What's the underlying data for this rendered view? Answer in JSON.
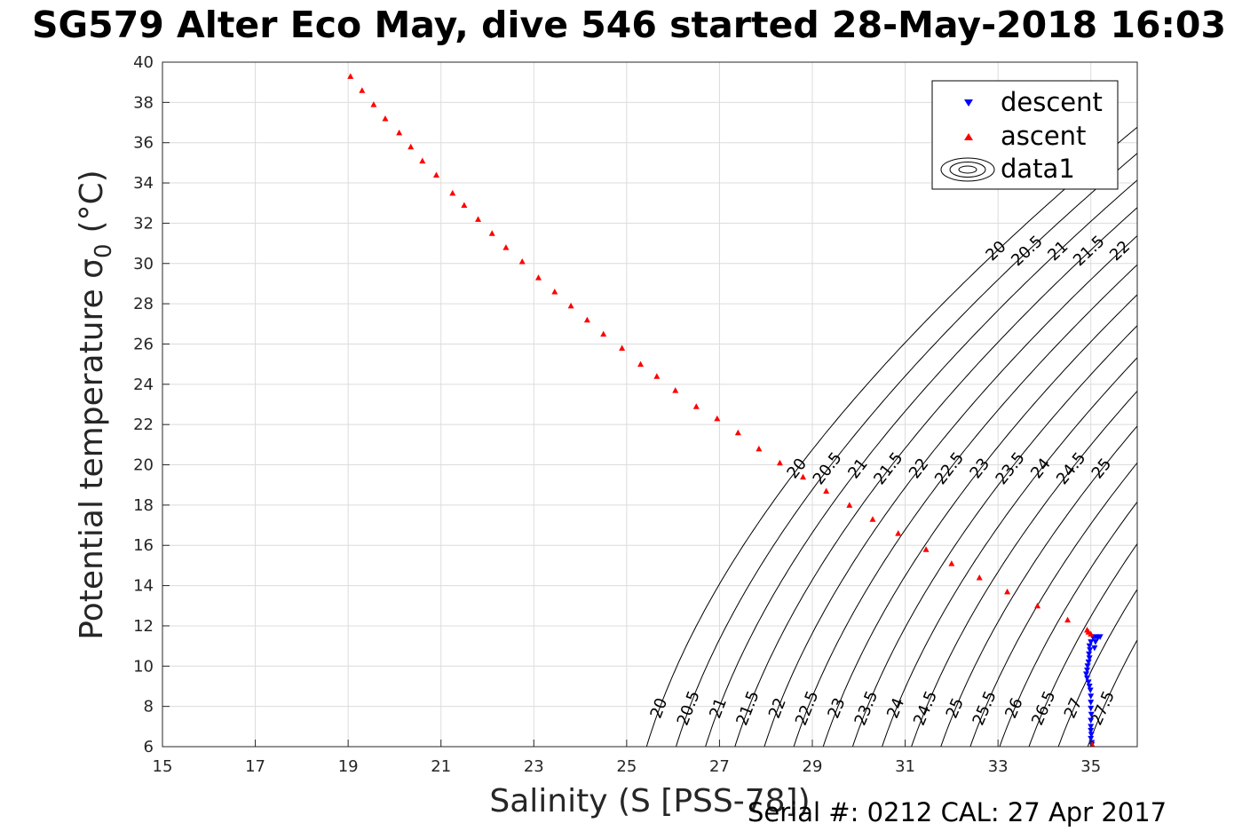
{
  "title": "SG579 Alter Eco May, dive 546 started 28-May-2018 16:03",
  "footer": "Serial #: 0212  CAL: 27 Apr 2017",
  "chart_data": {
    "type": "scatter",
    "xlabel": "Salinity (S [PSS-78])",
    "ylabel": "Potential temperature σ",
    "ylabel_subscript": "0",
    "ylabel_unit": "(°C)",
    "xlim": [
      15,
      36
    ],
    "ylim": [
      6,
      40
    ],
    "xticks": [
      15,
      17,
      19,
      21,
      23,
      25,
      27,
      29,
      31,
      33,
      35
    ],
    "yticks": [
      6,
      8,
      10,
      12,
      14,
      16,
      18,
      20,
      22,
      24,
      26,
      28,
      30,
      32,
      34,
      36,
      38,
      40
    ],
    "grid": true,
    "legend_position": "top-right",
    "legend": [
      "descent",
      "ascent",
      "data1"
    ],
    "series": [
      {
        "name": "descent",
        "marker": "triangle-down",
        "color": "#0000ff",
        "points": [
          [
            35.05,
            11.4
          ],
          [
            35.0,
            11.2
          ],
          [
            34.97,
            11.0
          ],
          [
            34.98,
            10.8
          ],
          [
            34.96,
            10.6
          ],
          [
            34.97,
            10.4
          ],
          [
            34.95,
            10.2
          ],
          [
            34.93,
            10.0
          ],
          [
            34.92,
            9.8
          ],
          [
            34.9,
            9.6
          ],
          [
            34.92,
            9.4
          ],
          [
            34.95,
            9.2
          ],
          [
            34.97,
            9.0
          ],
          [
            34.99,
            8.8
          ],
          [
            35.0,
            8.5
          ],
          [
            35.0,
            8.2
          ],
          [
            35.0,
            7.9
          ],
          [
            35.01,
            7.6
          ],
          [
            35.0,
            7.3
          ],
          [
            35.0,
            7.0
          ],
          [
            35.0,
            6.8
          ],
          [
            35.01,
            6.6
          ],
          [
            35.0,
            6.4
          ],
          [
            35.02,
            6.2
          ],
          [
            35.02,
            6.1
          ],
          [
            35.1,
            11.45
          ],
          [
            35.15,
            11.4
          ],
          [
            35.2,
            11.45
          ],
          [
            35.1,
            11.2
          ],
          [
            35.08,
            10.9
          ]
        ]
      },
      {
        "name": "ascent",
        "marker": "triangle-up",
        "color": "#ff0000",
        "points": [
          [
            19.05,
            39.3
          ],
          [
            19.3,
            38.6
          ],
          [
            19.55,
            37.9
          ],
          [
            19.8,
            37.2
          ],
          [
            20.1,
            36.5
          ],
          [
            20.35,
            35.8
          ],
          [
            20.6,
            35.1
          ],
          [
            20.9,
            34.4
          ],
          [
            21.25,
            33.5
          ],
          [
            21.5,
            32.9
          ],
          [
            21.8,
            32.2
          ],
          [
            22.1,
            31.5
          ],
          [
            22.4,
            30.8
          ],
          [
            22.75,
            30.1
          ],
          [
            23.1,
            29.3
          ],
          [
            23.45,
            28.6
          ],
          [
            23.8,
            27.9
          ],
          [
            24.15,
            27.2
          ],
          [
            24.5,
            26.5
          ],
          [
            24.9,
            25.8
          ],
          [
            25.3,
            25.0
          ],
          [
            25.65,
            24.4
          ],
          [
            26.05,
            23.7
          ],
          [
            26.5,
            22.9
          ],
          [
            26.95,
            22.3
          ],
          [
            27.4,
            21.6
          ],
          [
            27.85,
            20.8
          ],
          [
            28.3,
            20.1
          ],
          [
            28.8,
            19.4
          ],
          [
            29.3,
            18.7
          ],
          [
            29.8,
            18.0
          ],
          [
            30.3,
            17.3
          ],
          [
            30.85,
            16.6
          ],
          [
            31.45,
            15.8
          ],
          [
            32.0,
            15.1
          ],
          [
            32.6,
            14.4
          ],
          [
            33.2,
            13.7
          ],
          [
            33.85,
            13.0
          ],
          [
            34.5,
            12.3
          ],
          [
            34.92,
            11.8
          ],
          [
            35.0,
            11.6
          ],
          [
            34.95,
            11.7
          ],
          [
            35.03,
            6.1
          ],
          [
            35.05,
            6.0
          ]
        ]
      }
    ],
    "contours": {
      "name": "data1",
      "levels": [
        20,
        20.5,
        21,
        21.5,
        22,
        22.5,
        23,
        23.5,
        24,
        24.5,
        25,
        25.5,
        26,
        26.5,
        27,
        27.5
      ],
      "bottom_labels": [
        "20",
        "20.5",
        "21",
        "21.5",
        "22",
        "22.5",
        "23",
        "23.5",
        "24",
        "24.5",
        "25",
        "25.5",
        "26",
        "26.5",
        "27",
        "27.5"
      ],
      "middle_labels": [
        "20",
        "20.5",
        "21",
        "21.5",
        "22",
        "22.5",
        "23",
        "23.5",
        "24",
        "24.5",
        "25"
      ],
      "top_labels": [
        "20",
        "20.5",
        "21",
        "21.5",
        "22"
      ]
    }
  }
}
